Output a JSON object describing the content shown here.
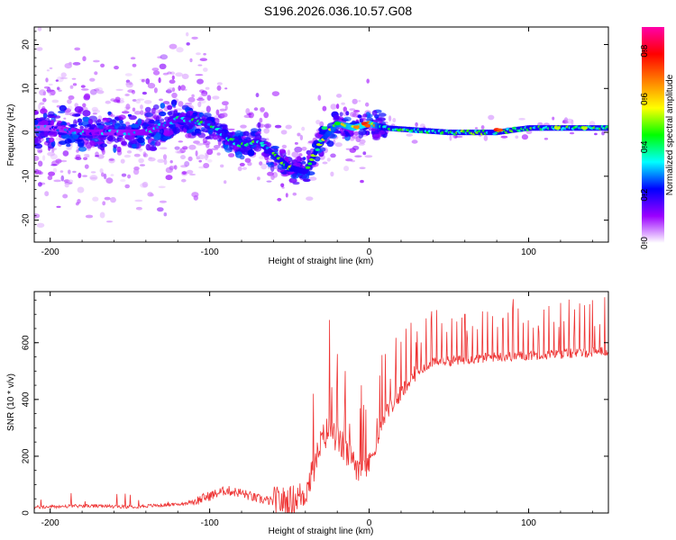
{
  "title": "S196.2026.036.10.57.G08",
  "chart_data": [
    {
      "type": "heatmap",
      "xlabel": "Height of straight line (km)",
      "ylabel": "Frequency (Hz)",
      "xlim": [
        -210,
        150
      ],
      "ylim": [
        -25,
        24
      ],
      "xticks": [
        -200,
        -100,
        0,
        100
      ],
      "yticks": [
        20,
        10,
        0,
        -10,
        -20
      ],
      "colorbar": {
        "label": "Normalized spectral amplitude",
        "range": [
          0,
          0.9
        ],
        "ticks": [
          "0.0",
          "0.2",
          "0.4",
          "0.6",
          "0.8"
        ],
        "tick_values": [
          0.0,
          0.2,
          0.4,
          0.6,
          0.8
        ],
        "colormap": [
          "#ffffff",
          "#9b00ff",
          "#0000ff",
          "#00ffff",
          "#00ff00",
          "#ffff00",
          "#ff8000",
          "#ff0000",
          "#ff00aa"
        ]
      },
      "ridge": {
        "x": [
          -200,
          -180,
          -160,
          -140,
          -120,
          -100,
          -90,
          -80,
          -70,
          -60,
          -50,
          -40,
          -30,
          -20,
          -10,
          0,
          10,
          50,
          80,
          100,
          150
        ],
        "y": [
          1,
          0,
          0,
          0,
          3,
          2,
          -1,
          -3,
          -2,
          -5,
          -8,
          -9,
          -2,
          2,
          1,
          2,
          1,
          0,
          0,
          1,
          1
        ],
        "amplitude": [
          0.2,
          0.3,
          0.25,
          0.3,
          0.4,
          0.45,
          0.5,
          0.5,
          0.45,
          0.5,
          0.55,
          0.5,
          0.6,
          0.7,
          0.8,
          0.85,
          0.5,
          0.45,
          0.8,
          0.5,
          0.6
        ]
      }
    },
    {
      "type": "line",
      "xlabel": "Height of straight line (km)",
      "ylabel": "SNR (10 * v/v)",
      "xlim": [
        -210,
        150
      ],
      "ylim": [
        0,
        780
      ],
      "xticks": [
        -200,
        -100,
        0,
        100
      ],
      "yticks": [
        0,
        200,
        400,
        600
      ],
      "color": "#ee3333",
      "series": [
        {
          "name": "SNR",
          "x": [
            -210,
            -180,
            -150,
            -120,
            -110,
            -100,
            -90,
            -80,
            -70,
            -60,
            -50,
            -40,
            -35,
            -30,
            -25,
            -20,
            -15,
            -10,
            -5,
            0,
            5,
            10,
            20,
            30,
            40,
            60,
            80,
            100,
            120,
            150
          ],
          "y": [
            20,
            25,
            22,
            30,
            40,
            60,
            80,
            70,
            50,
            40,
            40,
            70,
            150,
            250,
            300,
            260,
            220,
            180,
            160,
            180,
            250,
            350,
            420,
            500,
            530,
            540,
            550,
            555,
            560,
            570
          ],
          "spikes_x": [
            -35,
            -25,
            -20,
            -15,
            -5,
            10,
            30,
            60,
            90,
            120,
            140
          ],
          "spikes_y": [
            420,
            680,
            560,
            500,
            450,
            560,
            640,
            700,
            720,
            740,
            750
          ]
        }
      ]
    }
  ]
}
